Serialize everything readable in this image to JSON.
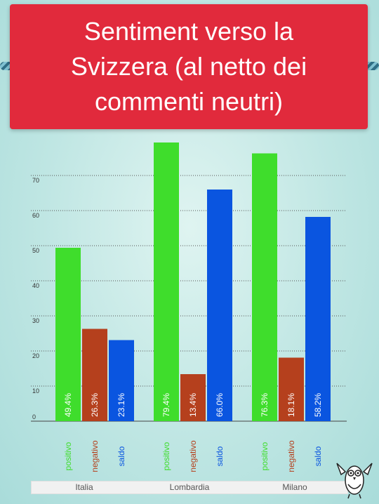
{
  "header": {
    "title": "Sentiment verso la Svizzera (al netto dei commenti neutri)"
  },
  "chart_data": {
    "type": "bar",
    "title": "Sentiment verso la Svizzera (al netto dei commenti neutri)",
    "categories": [
      "Italia",
      "Lombardia",
      "Milano"
    ],
    "bar_labels": [
      "positivo",
      "negativo",
      "saldo"
    ],
    "series": [
      {
        "name": "positivo",
        "values": [
          49.4,
          79.4,
          76.3
        ],
        "color": "#3fdd2c",
        "value_labels": [
          "49.4%",
          "79.4%",
          "76.3%"
        ]
      },
      {
        "name": "negativo",
        "values": [
          26.3,
          13.4,
          18.1
        ],
        "color": "#b5401d",
        "value_labels": [
          "26.3%",
          "13.4%",
          "18.1%"
        ]
      },
      {
        "name": "saldo",
        "values": [
          23.1,
          66.0,
          58.2
        ],
        "color": "#0a55e0",
        "value_labels": [
          "23.1%",
          "66.0%",
          "58.2%"
        ]
      }
    ],
    "yticks": [
      0,
      10,
      20,
      30,
      40,
      50,
      60,
      70
    ],
    "ylim": [
      0,
      80
    ],
    "grid": true,
    "legend": "none"
  }
}
